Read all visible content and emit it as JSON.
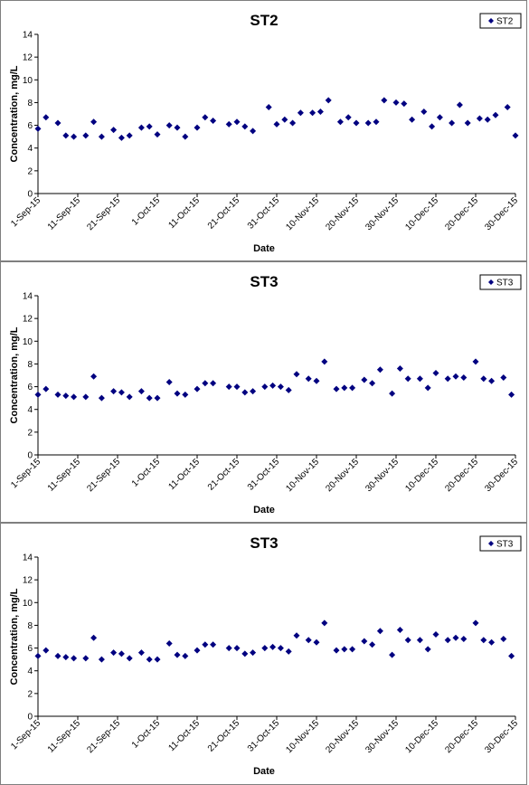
{
  "chart_data": [
    {
      "type": "scatter",
      "title": "ST2",
      "xlabel": "Date",
      "ylabel": "Concentration, mg/L",
      "ylim": [
        0,
        14
      ],
      "yticks": [
        "0",
        "2",
        "4",
        "6",
        "8",
        "10",
        "12",
        "14"
      ],
      "xlim": [
        "2015-09-01",
        "2015-12-30"
      ],
      "xticks": [
        {
          "date": "2015-09-01",
          "label": "1-Sep-15"
        },
        {
          "date": "2015-09-11",
          "label": "11-Sep-15"
        },
        {
          "date": "2015-09-21",
          "label": "21-Sep-15"
        },
        {
          "date": "2015-10-01",
          "label": "1-Oct-15"
        },
        {
          "date": "2015-10-11",
          "label": "11-Oct-15"
        },
        {
          "date": "2015-10-21",
          "label": "21-Oct-15"
        },
        {
          "date": "2015-10-31",
          "label": "31-Oct-15"
        },
        {
          "date": "2015-11-10",
          "label": "10-Nov-15"
        },
        {
          "date": "2015-11-20",
          "label": "20-Nov-15"
        },
        {
          "date": "2015-11-30",
          "label": "30-Nov-15"
        },
        {
          "date": "2015-12-10",
          "label": "10-Dec-15"
        },
        {
          "date": "2015-12-20",
          "label": "20-Dec-15"
        },
        {
          "date": "2015-12-30",
          "label": "30-Dec-15"
        }
      ],
      "grid": false,
      "legend_position": "top-right",
      "series": [
        {
          "name": "ST2",
          "color": "#000080",
          "marker": "diamond",
          "points": [
            {
              "x": "2015-09-01",
              "y": 5.7
            },
            {
              "x": "2015-09-03",
              "y": 6.7
            },
            {
              "x": "2015-09-06",
              "y": 6.2
            },
            {
              "x": "2015-09-08",
              "y": 5.1
            },
            {
              "x": "2015-09-10",
              "y": 5.0
            },
            {
              "x": "2015-09-13",
              "y": 5.1
            },
            {
              "x": "2015-09-15",
              "y": 6.3
            },
            {
              "x": "2015-09-17",
              "y": 5.0
            },
            {
              "x": "2015-09-20",
              "y": 5.6
            },
            {
              "x": "2015-09-22",
              "y": 4.9
            },
            {
              "x": "2015-09-24",
              "y": 5.1
            },
            {
              "x": "2015-09-27",
              "y": 5.8
            },
            {
              "x": "2015-09-29",
              "y": 5.9
            },
            {
              "x": "2015-10-01",
              "y": 5.2
            },
            {
              "x": "2015-10-04",
              "y": 6.0
            },
            {
              "x": "2015-10-06",
              "y": 5.8
            },
            {
              "x": "2015-10-08",
              "y": 5.0
            },
            {
              "x": "2015-10-11",
              "y": 5.8
            },
            {
              "x": "2015-10-13",
              "y": 6.7
            },
            {
              "x": "2015-10-15",
              "y": 6.4
            },
            {
              "x": "2015-10-19",
              "y": 6.1
            },
            {
              "x": "2015-10-21",
              "y": 6.3
            },
            {
              "x": "2015-10-23",
              "y": 5.9
            },
            {
              "x": "2015-10-25",
              "y": 5.5
            },
            {
              "x": "2015-10-29",
              "y": 7.6
            },
            {
              "x": "2015-10-31",
              "y": 6.1
            },
            {
              "x": "2015-11-02",
              "y": 6.5
            },
            {
              "x": "2015-11-04",
              "y": 6.2
            },
            {
              "x": "2015-11-06",
              "y": 7.1
            },
            {
              "x": "2015-11-09",
              "y": 7.1
            },
            {
              "x": "2015-11-11",
              "y": 7.2
            },
            {
              "x": "2015-11-13",
              "y": 8.2
            },
            {
              "x": "2015-11-16",
              "y": 6.3
            },
            {
              "x": "2015-11-18",
              "y": 6.7
            },
            {
              "x": "2015-11-20",
              "y": 6.2
            },
            {
              "x": "2015-11-23",
              "y": 6.2
            },
            {
              "x": "2015-11-25",
              "y": 6.3
            },
            {
              "x": "2015-11-27",
              "y": 8.2
            },
            {
              "x": "2015-11-30",
              "y": 8.0
            },
            {
              "x": "2015-12-02",
              "y": 7.9
            },
            {
              "x": "2015-12-04",
              "y": 6.5
            },
            {
              "x": "2015-12-07",
              "y": 7.2
            },
            {
              "x": "2015-12-09",
              "y": 5.9
            },
            {
              "x": "2015-12-11",
              "y": 6.7
            },
            {
              "x": "2015-12-14",
              "y": 6.2
            },
            {
              "x": "2015-12-16",
              "y": 7.8
            },
            {
              "x": "2015-12-18",
              "y": 6.2
            },
            {
              "x": "2015-12-21",
              "y": 6.6
            },
            {
              "x": "2015-12-23",
              "y": 6.5
            },
            {
              "x": "2015-12-25",
              "y": 6.9
            },
            {
              "x": "2015-12-28",
              "y": 7.6
            },
            {
              "x": "2015-12-30",
              "y": 5.1
            }
          ]
        }
      ]
    },
    {
      "type": "scatter",
      "title": "ST3",
      "xlabel": "Date",
      "ylabel": "Concentration, mg/L",
      "ylim": [
        0,
        14
      ],
      "yticks": [
        "0",
        "2",
        "4",
        "6",
        "8",
        "10",
        "12",
        "14"
      ],
      "xlim": [
        "2015-09-01",
        "2015-12-30"
      ],
      "xticks": [
        {
          "date": "2015-09-01",
          "label": "1-Sep-15"
        },
        {
          "date": "2015-09-11",
          "label": "11-Sep-15"
        },
        {
          "date": "2015-09-21",
          "label": "21-Sep-15"
        },
        {
          "date": "2015-10-01",
          "label": "1-Oct-15"
        },
        {
          "date": "2015-10-11",
          "label": "11-Oct-15"
        },
        {
          "date": "2015-10-21",
          "label": "21-Oct-15"
        },
        {
          "date": "2015-10-31",
          "label": "31-Oct-15"
        },
        {
          "date": "2015-11-10",
          "label": "10-Nov-15"
        },
        {
          "date": "2015-11-20",
          "label": "20-Nov-15"
        },
        {
          "date": "2015-11-30",
          "label": "30-Nov-15"
        },
        {
          "date": "2015-12-10",
          "label": "10-Dec-15"
        },
        {
          "date": "2015-12-20",
          "label": "20-Dec-15"
        },
        {
          "date": "2015-12-30",
          "label": "30-Dec-15"
        }
      ],
      "grid": false,
      "legend_position": "top-right",
      "series": [
        {
          "name": "ST3",
          "color": "#000080",
          "marker": "diamond",
          "points": [
            {
              "x": "2015-09-01",
              "y": 5.3
            },
            {
              "x": "2015-09-03",
              "y": 5.8
            },
            {
              "x": "2015-09-06",
              "y": 5.3
            },
            {
              "x": "2015-09-08",
              "y": 5.2
            },
            {
              "x": "2015-09-10",
              "y": 5.1
            },
            {
              "x": "2015-09-13",
              "y": 5.1
            },
            {
              "x": "2015-09-15",
              "y": 6.9
            },
            {
              "x": "2015-09-17",
              "y": 5.0
            },
            {
              "x": "2015-09-20",
              "y": 5.6
            },
            {
              "x": "2015-09-22",
              "y": 5.5
            },
            {
              "x": "2015-09-24",
              "y": 5.1
            },
            {
              "x": "2015-09-27",
              "y": 5.6
            },
            {
              "x": "2015-09-29",
              "y": 5.0
            },
            {
              "x": "2015-10-01",
              "y": 5.0
            },
            {
              "x": "2015-10-04",
              "y": 6.4
            },
            {
              "x": "2015-10-06",
              "y": 5.4
            },
            {
              "x": "2015-10-08",
              "y": 5.3
            },
            {
              "x": "2015-10-11",
              "y": 5.8
            },
            {
              "x": "2015-10-13",
              "y": 6.3
            },
            {
              "x": "2015-10-15",
              "y": 6.3
            },
            {
              "x": "2015-10-19",
              "y": 6.0
            },
            {
              "x": "2015-10-21",
              "y": 6.0
            },
            {
              "x": "2015-10-23",
              "y": 5.5
            },
            {
              "x": "2015-10-25",
              "y": 5.6
            },
            {
              "x": "2015-10-28",
              "y": 6.0
            },
            {
              "x": "2015-10-30",
              "y": 6.1
            },
            {
              "x": "2015-11-01",
              "y": 6.0
            },
            {
              "x": "2015-11-03",
              "y": 5.7
            },
            {
              "x": "2015-11-05",
              "y": 7.1
            },
            {
              "x": "2015-11-08",
              "y": 6.7
            },
            {
              "x": "2015-11-10",
              "y": 6.5
            },
            {
              "x": "2015-11-12",
              "y": 8.2
            },
            {
              "x": "2015-11-15",
              "y": 5.8
            },
            {
              "x": "2015-11-17",
              "y": 5.9
            },
            {
              "x": "2015-11-19",
              "y": 5.9
            },
            {
              "x": "2015-11-22",
              "y": 6.6
            },
            {
              "x": "2015-11-24",
              "y": 6.3
            },
            {
              "x": "2015-11-26",
              "y": 7.5
            },
            {
              "x": "2015-11-29",
              "y": 5.4
            },
            {
              "x": "2015-12-01",
              "y": 7.6
            },
            {
              "x": "2015-12-03",
              "y": 6.7
            },
            {
              "x": "2015-12-06",
              "y": 6.7
            },
            {
              "x": "2015-12-08",
              "y": 5.9
            },
            {
              "x": "2015-12-10",
              "y": 7.2
            },
            {
              "x": "2015-12-13",
              "y": 6.7
            },
            {
              "x": "2015-12-15",
              "y": 6.9
            },
            {
              "x": "2015-12-17",
              "y": 6.8
            },
            {
              "x": "2015-12-20",
              "y": 8.2
            },
            {
              "x": "2015-12-22",
              "y": 6.7
            },
            {
              "x": "2015-12-24",
              "y": 6.5
            },
            {
              "x": "2015-12-27",
              "y": 6.8
            },
            {
              "x": "2015-12-29",
              "y": 5.3
            }
          ]
        }
      ]
    },
    {
      "type": "scatter",
      "title": "ST3",
      "xlabel": "Date",
      "ylabel": "Concentration, mg/L",
      "ylim": [
        0,
        14
      ],
      "yticks": [
        "0",
        "2",
        "4",
        "6",
        "8",
        "10",
        "12",
        "14"
      ],
      "xlim": [
        "2015-09-01",
        "2015-12-30"
      ],
      "xticks": [
        {
          "date": "2015-09-01",
          "label": "1-Sep-15"
        },
        {
          "date": "2015-09-11",
          "label": "11-Sep-15"
        },
        {
          "date": "2015-09-21",
          "label": "21-Sep-15"
        },
        {
          "date": "2015-10-01",
          "label": "1-Oct-15"
        },
        {
          "date": "2015-10-11",
          "label": "11-Oct-15"
        },
        {
          "date": "2015-10-21",
          "label": "21-Oct-15"
        },
        {
          "date": "2015-10-31",
          "label": "31-Oct-15"
        },
        {
          "date": "2015-11-10",
          "label": "10-Nov-15"
        },
        {
          "date": "2015-11-20",
          "label": "20-Nov-15"
        },
        {
          "date": "2015-11-30",
          "label": "30-Nov-15"
        },
        {
          "date": "2015-12-10",
          "label": "10-Dec-15"
        },
        {
          "date": "2015-12-20",
          "label": "20-Dec-15"
        },
        {
          "date": "2015-12-30",
          "label": "30-Dec-15"
        }
      ],
      "grid": false,
      "legend_position": "top-right",
      "series": [
        {
          "name": "ST3",
          "color": "#000080",
          "marker": "diamond",
          "points": [
            {
              "x": "2015-09-01",
              "y": 5.3
            },
            {
              "x": "2015-09-03",
              "y": 5.8
            },
            {
              "x": "2015-09-06",
              "y": 5.3
            },
            {
              "x": "2015-09-08",
              "y": 5.2
            },
            {
              "x": "2015-09-10",
              "y": 5.1
            },
            {
              "x": "2015-09-13",
              "y": 5.1
            },
            {
              "x": "2015-09-15",
              "y": 6.9
            },
            {
              "x": "2015-09-17",
              "y": 5.0
            },
            {
              "x": "2015-09-20",
              "y": 5.6
            },
            {
              "x": "2015-09-22",
              "y": 5.5
            },
            {
              "x": "2015-09-24",
              "y": 5.1
            },
            {
              "x": "2015-09-27",
              "y": 5.6
            },
            {
              "x": "2015-09-29",
              "y": 5.0
            },
            {
              "x": "2015-10-01",
              "y": 5.0
            },
            {
              "x": "2015-10-04",
              "y": 6.4
            },
            {
              "x": "2015-10-06",
              "y": 5.4
            },
            {
              "x": "2015-10-08",
              "y": 5.3
            },
            {
              "x": "2015-10-11",
              "y": 5.8
            },
            {
              "x": "2015-10-13",
              "y": 6.3
            },
            {
              "x": "2015-10-15",
              "y": 6.3
            },
            {
              "x": "2015-10-19",
              "y": 6.0
            },
            {
              "x": "2015-10-21",
              "y": 6.0
            },
            {
              "x": "2015-10-23",
              "y": 5.5
            },
            {
              "x": "2015-10-25",
              "y": 5.6
            },
            {
              "x": "2015-10-28",
              "y": 6.0
            },
            {
              "x": "2015-10-30",
              "y": 6.1
            },
            {
              "x": "2015-11-01",
              "y": 6.0
            },
            {
              "x": "2015-11-03",
              "y": 5.7
            },
            {
              "x": "2015-11-05",
              "y": 7.1
            },
            {
              "x": "2015-11-08",
              "y": 6.7
            },
            {
              "x": "2015-11-10",
              "y": 6.5
            },
            {
              "x": "2015-11-12",
              "y": 8.2
            },
            {
              "x": "2015-11-15",
              "y": 5.8
            },
            {
              "x": "2015-11-17",
              "y": 5.9
            },
            {
              "x": "2015-11-19",
              "y": 5.9
            },
            {
              "x": "2015-11-22",
              "y": 6.6
            },
            {
              "x": "2015-11-24",
              "y": 6.3
            },
            {
              "x": "2015-11-26",
              "y": 7.5
            },
            {
              "x": "2015-11-29",
              "y": 5.4
            },
            {
              "x": "2015-12-01",
              "y": 7.6
            },
            {
              "x": "2015-12-03",
              "y": 6.7
            },
            {
              "x": "2015-12-06",
              "y": 6.7
            },
            {
              "x": "2015-12-08",
              "y": 5.9
            },
            {
              "x": "2015-12-10",
              "y": 7.2
            },
            {
              "x": "2015-12-13",
              "y": 6.7
            },
            {
              "x": "2015-12-15",
              "y": 6.9
            },
            {
              "x": "2015-12-17",
              "y": 6.8
            },
            {
              "x": "2015-12-20",
              "y": 8.2
            },
            {
              "x": "2015-12-22",
              "y": 6.7
            },
            {
              "x": "2015-12-24",
              "y": 6.5
            },
            {
              "x": "2015-12-27",
              "y": 6.8
            },
            {
              "x": "2015-12-29",
              "y": 5.3
            }
          ]
        }
      ]
    }
  ]
}
